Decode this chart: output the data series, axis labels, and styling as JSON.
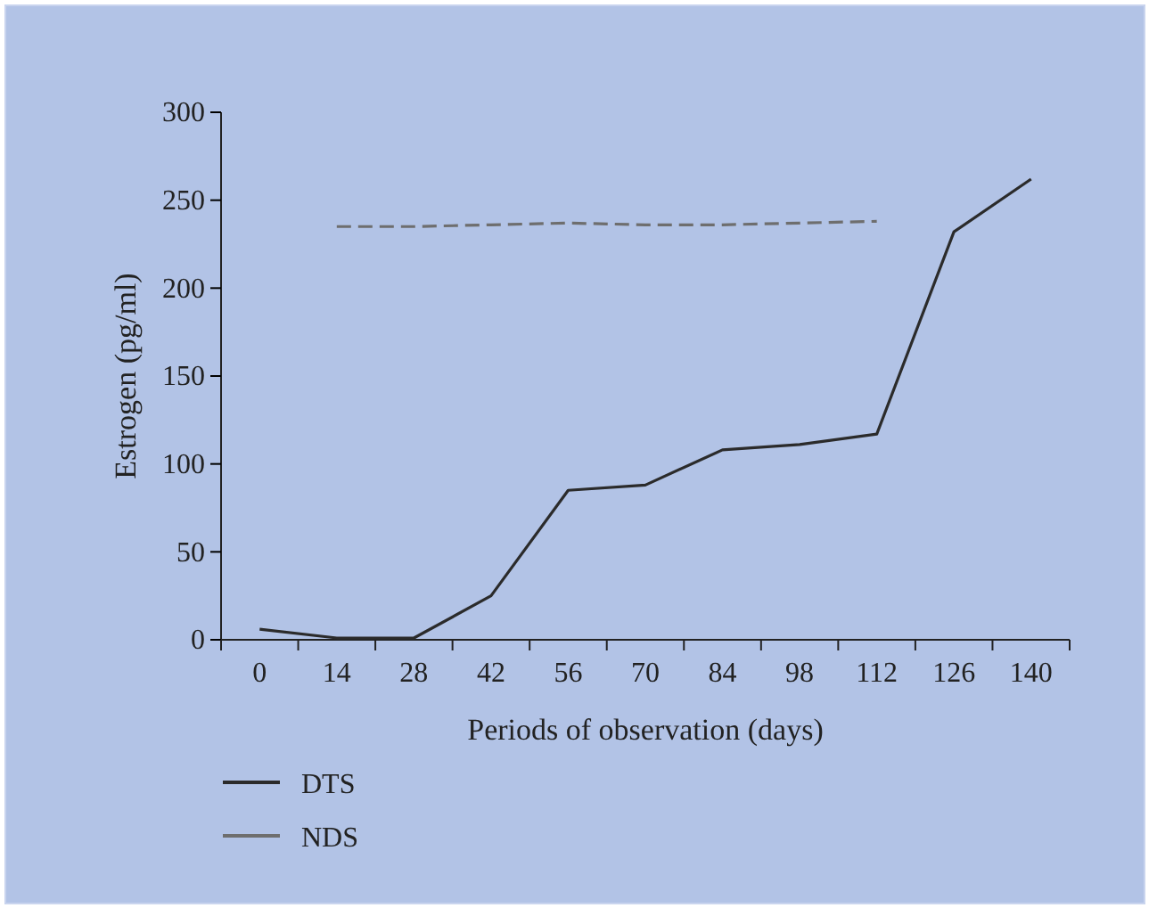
{
  "chart_data": {
    "type": "line",
    "xlabel": "Periods of observation (days)",
    "ylabel": "Estrogen (pg/ml)",
    "categories": [
      "0",
      "14",
      "28",
      "42",
      "56",
      "70",
      "84",
      "98",
      "112",
      "126",
      "140"
    ],
    "series": [
      {
        "name": "DTS",
        "color": "#2b2b2b",
        "line_style": "solid",
        "values": [
          6,
          1,
          1,
          25,
          85,
          88,
          108,
          111,
          117,
          232,
          262
        ]
      },
      {
        "name": "NDS",
        "color": "#6e6e6e",
        "line_style": "dashed",
        "values": [
          null,
          235,
          235,
          236,
          237,
          236,
          236,
          237,
          238,
          null,
          null
        ]
      }
    ],
    "ylim": [
      0,
      300
    ],
    "yticks": [
      0,
      50,
      100,
      150,
      200,
      250,
      300
    ],
    "grid": false,
    "legend": "bottom left"
  }
}
